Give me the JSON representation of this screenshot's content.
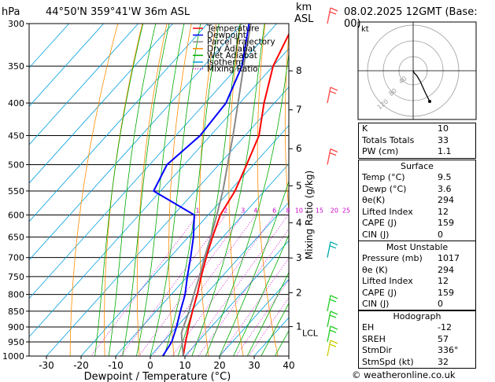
{
  "header": {
    "pressure_unit": "hPa",
    "location": "44°50'N  359°41'W  36m  ASL",
    "km_unit": "km",
    "asl_unit": "ASL",
    "valid_time": "08.02.2025  12GMT  (Base: 00)"
  },
  "legend": [
    {
      "label": "Temperature",
      "color": "#ff0000",
      "dash": "solid"
    },
    {
      "label": "Dewpoint",
      "color": "#0000ff",
      "dash": "solid"
    },
    {
      "label": "Parcel Trajectory",
      "color": "#888888",
      "dash": "solid"
    },
    {
      "label": "Dry Adiabat",
      "color": "#ff8c00",
      "dash": "solid"
    },
    {
      "label": "Wet Adiabat",
      "color": "#00aa00",
      "dash": "solid"
    },
    {
      "label": "Isotherm",
      "color": "#00a0e0",
      "dash": "solid"
    },
    {
      "label": "Mixing Ratio",
      "color": "#cc00cc",
      "dash": "dotted"
    }
  ],
  "chart_data": {
    "type": "line",
    "xlabel": "Dewpoint / Temperature (°C)",
    "ylabel": "hPa",
    "right_axis_label": "Mixing Ratio (g/kg)",
    "xlim": [
      -35,
      40
    ],
    "ylim": [
      1000,
      300
    ],
    "x_ticks": [
      -30,
      -20,
      -10,
      0,
      10,
      20,
      30,
      40
    ],
    "y_ticks": [
      300,
      350,
      400,
      450,
      500,
      550,
      600,
      650,
      700,
      750,
      800,
      850,
      900,
      950,
      1000
    ],
    "height_ticks_km": [
      {
        "km": "8",
        "p": 356
      },
      {
        "km": "7",
        "p": 410
      },
      {
        "km": "6",
        "p": 472
      },
      {
        "km": "5",
        "p": 540
      },
      {
        "km": "4",
        "p": 617
      },
      {
        "km": "3",
        "p": 701
      },
      {
        "km": "2",
        "p": 795
      },
      {
        "km": "1",
        "p": 899
      }
    ],
    "lcl": {
      "label": "LCL",
      "p": 920
    },
    "mixing_ratio_labels": [
      "1",
      "2",
      "3",
      "4",
      "6",
      "8",
      "10",
      "15",
      "20",
      "25"
    ],
    "series": [
      {
        "name": "Temperature",
        "points": [
          [
            1000,
            9.5
          ],
          [
            950,
            6.5
          ],
          [
            900,
            3.5
          ],
          [
            850,
            0.5
          ],
          [
            800,
            -2.5
          ],
          [
            750,
            -6
          ],
          [
            700,
            -9.5
          ],
          [
            650,
            -13
          ],
          [
            600,
            -16.5
          ],
          [
            550,
            -18.5
          ],
          [
            500,
            -22
          ],
          [
            450,
            -26
          ],
          [
            400,
            -33
          ],
          [
            350,
            -40
          ],
          [
            300,
            -45
          ]
        ]
      },
      {
        "name": "Dewpoint",
        "points": [
          [
            1000,
            3.6
          ],
          [
            950,
            2.5
          ],
          [
            900,
            0
          ],
          [
            850,
            -3
          ],
          [
            800,
            -6
          ],
          [
            750,
            -10
          ],
          [
            700,
            -14
          ],
          [
            650,
            -18.5
          ],
          [
            600,
            -24
          ],
          [
            550,
            -42
          ],
          [
            500,
            -45
          ],
          [
            450,
            -43
          ],
          [
            400,
            -44
          ],
          [
            350,
            -49
          ],
          [
            300,
            -58
          ]
        ]
      },
      {
        "name": "Parcel Trajectory",
        "points": [
          [
            1000,
            9.5
          ],
          [
            950,
            5.5
          ],
          [
            920,
            3.0
          ],
          [
            900,
            2.0
          ],
          [
            850,
            -0.5
          ],
          [
            800,
            -3.5
          ],
          [
            750,
            -6.5
          ],
          [
            700,
            -10
          ],
          [
            650,
            -13.5
          ],
          [
            600,
            -17.5
          ],
          [
            550,
            -22
          ],
          [
            500,
            -27.5
          ],
          [
            450,
            -33.5
          ],
          [
            400,
            -40.5
          ],
          [
            350,
            -48.5
          ],
          [
            300,
            -57.5
          ]
        ]
      }
    ],
    "winds": [
      {
        "p": 1000,
        "color": "#cccc00"
      },
      {
        "p": 950,
        "color": "#22cc22"
      },
      {
        "p": 900,
        "color": "#22cc22"
      },
      {
        "p": 850,
        "color": "#22cc22"
      },
      {
        "p": 700,
        "color": "#00aaaa"
      },
      {
        "p": 500,
        "color": "#ff4444"
      },
      {
        "p": 400,
        "color": "#ff4444"
      },
      {
        "p": 300,
        "color": "#ff4444"
      }
    ],
    "hodograph": {
      "unit": "kt",
      "ring_labels": [
        "40",
        "80",
        "120"
      ],
      "points": [
        [
          0,
          0
        ],
        [
          1,
          -2
        ],
        [
          3,
          -4
        ],
        [
          6,
          -9
        ],
        [
          10,
          -18
        ],
        [
          14,
          -26
        ]
      ]
    }
  },
  "indices": {
    "top": [
      {
        "label": "K",
        "value": "10"
      },
      {
        "label": "Totals Totals",
        "value": "33"
      },
      {
        "label": "PW (cm)",
        "value": "1.1"
      }
    ],
    "surface": {
      "title": "Surface",
      "rows": [
        {
          "label": "Temp (°C)",
          "value": "9.5"
        },
        {
          "label": "Dewp (°C)",
          "value": "3.6"
        },
        {
          "label": "θe(K)",
          "value": "294"
        },
        {
          "label": "Lifted Index",
          "value": "12"
        },
        {
          "label": "CAPE (J)",
          "value": "159"
        },
        {
          "label": "CIN (J)",
          "value": "0"
        }
      ]
    },
    "most_unstable": {
      "title": "Most Unstable",
      "rows": [
        {
          "label": "Pressure (mb)",
          "value": "1017"
        },
        {
          "label": "θe (K)",
          "value": "294"
        },
        {
          "label": "Lifted Index",
          "value": "12"
        },
        {
          "label": "CAPE (J)",
          "value": "159"
        },
        {
          "label": "CIN (J)",
          "value": "0"
        }
      ]
    },
    "hodograph_box": {
      "title": "Hodograph",
      "rows": [
        {
          "label": "EH",
          "value": "-12"
        },
        {
          "label": "SREH",
          "value": "57"
        },
        {
          "label": "StmDir",
          "value": "336°"
        },
        {
          "label": "StmSpd (kt)",
          "value": "32"
        }
      ]
    }
  },
  "copyright": "© weatheronline.co.uk"
}
